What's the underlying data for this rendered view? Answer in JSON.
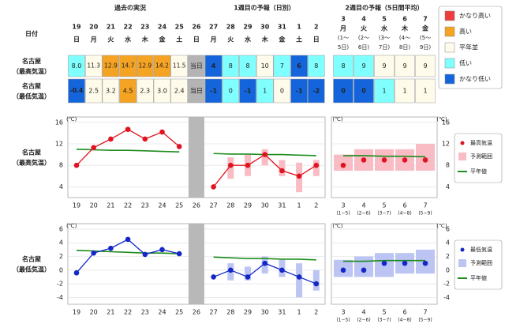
{
  "table": {
    "headers": [
      "過去の実況",
      "1週目の予報（日別）",
      "2週目の予報（5日間平均）"
    ],
    "date_label": "日付",
    "today": "当日",
    "days": [
      [
        "19",
        "日"
      ],
      [
        "20",
        "月"
      ],
      [
        "21",
        "火"
      ],
      [
        "22",
        "水"
      ],
      [
        "23",
        "木"
      ],
      [
        "24",
        "金"
      ],
      [
        "25",
        "土"
      ],
      [
        "26",
        "日"
      ],
      [
        "27",
        "月"
      ],
      [
        "28",
        "火"
      ],
      [
        "29",
        "水"
      ],
      [
        "30",
        "木"
      ],
      [
        "31",
        "金"
      ],
      [
        "1",
        "土"
      ],
      [
        "2",
        "日"
      ]
    ],
    "week2_days": [
      [
        "3",
        "月",
        "(1～",
        "5日)"
      ],
      [
        "4",
        "火",
        "(2～",
        "6日)"
      ],
      [
        "5",
        "水",
        "(3～",
        "7日)"
      ],
      [
        "6",
        "木",
        "(4～",
        "8日)"
      ],
      [
        "7",
        "金",
        "(5～",
        "9日)"
      ]
    ],
    "rows": [
      {
        "label": [
          "名古屋",
          "（最高気温）"
        ],
        "cells": [
          "8.0",
          "11.3",
          "12.9",
          "14.7",
          "12.9",
          "14.2",
          "11.5",
          null,
          "4",
          "8",
          "8",
          "10",
          "7",
          "6",
          "8"
        ],
        "colors": [
          "#80ffff",
          "#fffbea",
          "#f5a323",
          "#f5a323",
          "#f5a323",
          "#f5a323",
          "#fffbea",
          null,
          "#1464dc",
          "#80ffff",
          "#80ffff",
          "#fffbea",
          "#80ffff",
          "#1464dc",
          "#80ffff"
        ],
        "week2_cells": [
          "8",
          "9",
          "9",
          "9",
          "9"
        ],
        "week2_colors": [
          "#80ffff",
          "#80ffff",
          "#fffbea",
          "#fffbea",
          "#fffbea"
        ]
      },
      {
        "label": [
          "名古屋",
          "（最低気温）"
        ],
        "cells": [
          "-0.4",
          "2.5",
          "3.2",
          "4.5",
          "2.3",
          "3.0",
          "2.4",
          null,
          "-1",
          "0",
          "-1",
          "1",
          "0",
          "-1",
          "-2"
        ],
        "colors": [
          "#1464dc",
          "#fffbea",
          "#fffbea",
          "#f5a323",
          "#fffbea",
          "#fffbea",
          "#fffbea",
          null,
          "#1464dc",
          "#80ffff",
          "#1464dc",
          "#80ffff",
          "#fffbea",
          "#1464dc",
          "#1464dc"
        ],
        "week2_cells": [
          "0",
          "0",
          "1",
          "1",
          "1"
        ],
        "week2_colors": [
          "#1464dc",
          "#1464dc",
          "#80ffff",
          "#fffbea",
          "#fffbea"
        ]
      }
    ],
    "legend": [
      {
        "label": "かなり高い",
        "color": "#f03c3c"
      },
      {
        "label": "高い",
        "color": "#f5a323"
      },
      {
        "label": "平年並",
        "color": "#fffbea"
      },
      {
        "label": "低い",
        "color": "#80ffff"
      },
      {
        "label": "かなり低い",
        "color": "#1464dc"
      }
    ]
  },
  "chart_data": [
    {
      "type": "line",
      "label": [
        "名古屋",
        "（最高気温）"
      ],
      "unit": "(℃)",
      "categories": [
        "19",
        "20",
        "21",
        "22",
        "23",
        "24",
        "25",
        "26",
        "27",
        "28",
        "29",
        "30",
        "31",
        "1",
        "2"
      ],
      "week2_categories": [
        [
          "3",
          "(1∼5)"
        ],
        [
          "4",
          "(2∼6)"
        ],
        [
          "5",
          "(3∼7)"
        ],
        [
          "6",
          "(4∼8)"
        ],
        [
          "7",
          "(5∼9)"
        ]
      ],
      "ylim": [
        2,
        17
      ],
      "yticks": [
        4,
        8,
        12,
        16
      ],
      "grid": true,
      "series": [
        {
          "name": "最高気温",
          "color": "#e01420",
          "values": [
            8.0,
            11.3,
            12.9,
            14.7,
            12.9,
            14.2,
            11.5,
            null,
            4,
            8,
            8,
            10,
            7,
            6,
            8
          ],
          "week2_values": [
            8,
            9,
            9,
            9,
            9
          ]
        }
      ],
      "range": {
        "name": "予測範囲",
        "color": "#f9bcc4",
        "low": [
          null,
          null,
          null,
          null,
          null,
          null,
          null,
          null,
          null,
          5.5,
          6,
          8,
          6,
          3,
          6
        ],
        "high": [
          null,
          null,
          null,
          null,
          null,
          null,
          null,
          null,
          null,
          9.5,
          10,
          11,
          9,
          8.5,
          9
        ],
        "week2_low": [
          7,
          7,
          7,
          7,
          7
        ],
        "week2_high": [
          10,
          11,
          11,
          11,
          12
        ]
      },
      "normal": {
        "name": "平年値",
        "color": "#1e8c1e",
        "values": [
          11.0,
          10.9,
          10.8,
          10.8,
          10.7,
          10.6,
          10.5,
          null,
          10.2,
          10.1,
          10.1,
          10.0,
          10.0,
          9.9,
          9.8
        ],
        "week2_values": [
          9.8,
          9.8,
          9.7,
          9.7,
          9.6
        ]
      }
    },
    {
      "type": "line",
      "label": [
        "名古屋",
        "（最低気温）"
      ],
      "unit": "(℃)",
      "categories": [
        "19",
        "20",
        "21",
        "22",
        "23",
        "24",
        "25",
        "26",
        "27",
        "28",
        "29",
        "30",
        "31",
        "1",
        "2"
      ],
      "week2_categories": [
        [
          "3",
          "(1∼5)"
        ],
        [
          "4",
          "(2∼6)"
        ],
        [
          "5",
          "(3∼7)"
        ],
        [
          "6",
          "(4∼8)"
        ],
        [
          "7",
          "(5∼9)"
        ]
      ],
      "ylim": [
        -5,
        6.8
      ],
      "yticks": [
        -4,
        -2,
        0,
        2,
        4,
        6
      ],
      "grid": true,
      "series": [
        {
          "name": "最低気温",
          "color": "#1428c8",
          "values": [
            -0.4,
            2.5,
            3.2,
            4.5,
            2.3,
            3.0,
            2.4,
            null,
            -1,
            0,
            -1,
            1,
            0,
            -1,
            -2
          ],
          "week2_values": [
            0,
            0,
            1,
            1,
            1
          ]
        }
      ],
      "range": {
        "name": "予測範囲",
        "color": "#bcc4f4",
        "low": [
          null,
          null,
          null,
          null,
          null,
          null,
          null,
          null,
          null,
          -1.5,
          -1.5,
          -0.5,
          -1,
          -4,
          -3
        ],
        "high": [
          null,
          null,
          null,
          null,
          null,
          null,
          null,
          null,
          null,
          1,
          0.5,
          2,
          1.5,
          1,
          0
        ],
        "week2_low": [
          -1,
          -1,
          -1,
          -0.5,
          -0.5
        ],
        "week2_high": [
          1.5,
          2,
          2.5,
          2.5,
          3
        ]
      },
      "normal": {
        "name": "平年値",
        "color": "#1e8c1e",
        "values": [
          2.9,
          2.8,
          2.7,
          2.6,
          2.5,
          2.5,
          2.4,
          null,
          1.9,
          1.8,
          1.7,
          1.7,
          1.6,
          1.6,
          1.5
        ],
        "week2_values": [
          1.3,
          1.3,
          1.4,
          1.4,
          1.4
        ]
      }
    }
  ]
}
